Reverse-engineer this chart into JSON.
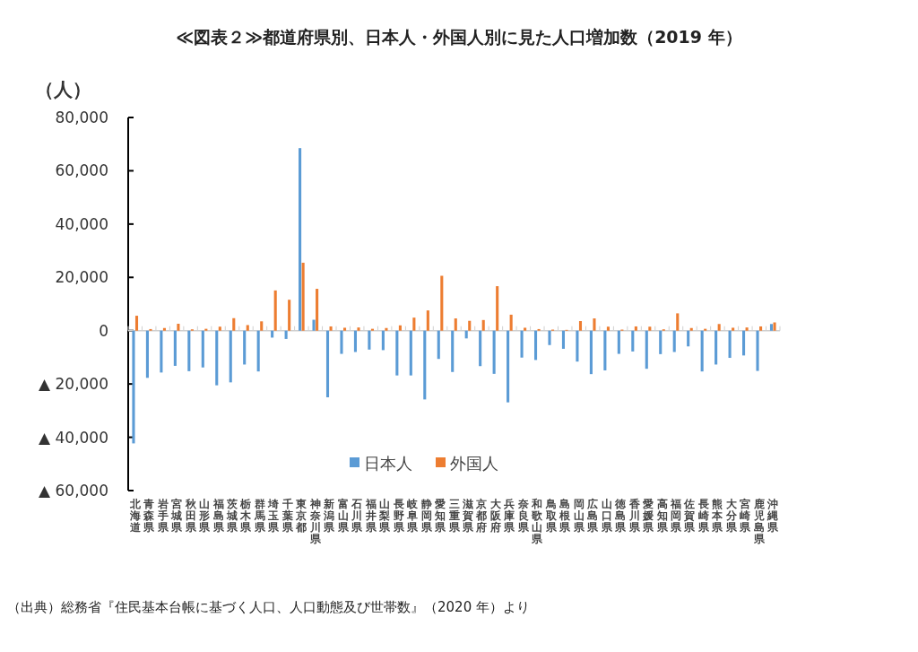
{
  "chart_data": {
    "type": "bar",
    "title": "≪図表２≫都道府県別、日本人・外国人別に見た人口増加数（2019 年）",
    "ylabel": "（人）",
    "categories": [
      "北海道",
      "青森県",
      "岩手県",
      "宮城県",
      "秋田県",
      "山形県",
      "福島県",
      "茨城県",
      "栃木県",
      "群馬県",
      "埼玉県",
      "千葉県",
      "東京都",
      "神奈川県",
      "新潟県",
      "富山県",
      "石川県",
      "福井県",
      "山梨県",
      "長野県",
      "岐阜県",
      "静岡県",
      "愛知県",
      "三重県",
      "滋賀県",
      "京都府",
      "大阪府",
      "兵庫県",
      "奈良県",
      "和歌山県",
      "鳥取県",
      "島根県",
      "岡山県",
      "広島県",
      "山口県",
      "徳島県",
      "香川県",
      "愛媛県",
      "高知県",
      "福岡県",
      "佐賀県",
      "長崎県",
      "熊本県",
      "大分県",
      "宮崎県",
      "鹿児島県",
      "沖縄県"
    ],
    "series": [
      {
        "name": "日本人",
        "color": "#5b9bd5",
        "values": [
          -42300,
          -17700,
          -15700,
          -13200,
          -15200,
          -13800,
          -20500,
          -19400,
          -12700,
          -15300,
          -2600,
          -3100,
          68500,
          4100,
          -25000,
          -8700,
          -8000,
          -7100,
          -7300,
          -16800,
          -16800,
          -25800,
          -10600,
          -15500,
          -2900,
          -13300,
          -16200,
          -26900,
          -10100,
          -11000,
          -5400,
          -6800,
          -11600,
          -16300,
          -14900,
          -8700,
          -7800,
          -14300,
          -8800,
          -8000,
          -5900,
          -15300,
          -12700,
          -10200,
          -9300,
          -15100,
          2500
        ]
      },
      {
        "name": "外国人",
        "color": "#ed7d31",
        "values": [
          5600,
          600,
          1000,
          2600,
          500,
          700,
          1500,
          4700,
          2100,
          3500,
          15100,
          11600,
          25500,
          15700,
          1600,
          1100,
          1200,
          700,
          1000,
          2000,
          4900,
          7600,
          20600,
          4600,
          3700,
          4000,
          16700,
          6000,
          1100,
          600,
          400,
          300,
          3600,
          4600,
          1500,
          400,
          1600,
          1500,
          500,
          6500,
          1000,
          700,
          2500,
          1100,
          1200,
          1600,
          3100
        ]
      }
    ],
    "ylim": [
      -60000,
      80000
    ],
    "yticks": [
      {
        "value": 80000,
        "label": "80,000"
      },
      {
        "value": 60000,
        "label": "60,000"
      },
      {
        "value": 40000,
        "label": "40,000"
      },
      {
        "value": 20000,
        "label": "20,000"
      },
      0,
      {
        "value": -20000,
        "label": "▲ 20,000"
      },
      {
        "value": -40000,
        "label": "▲ 40,000"
      },
      {
        "value": -60000,
        "label": "▲ 60,000"
      }
    ],
    "legend": "bottom",
    "annotations": [
      "（出典）総務省『住民基本台帳に基づく人口、人口動態及び世帯数』（2020 年）より"
    ]
  }
}
